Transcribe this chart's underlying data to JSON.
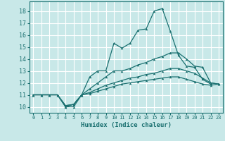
{
  "xlabel": "Humidex (Indice chaleur)",
  "bg_color": "#c8e8e8",
  "grid_color": "#ffffff",
  "line_color": "#1a7070",
  "xlim": [
    -0.5,
    23.5
  ],
  "ylim": [
    9.5,
    18.8
  ],
  "yticks": [
    10,
    11,
    12,
    13,
    14,
    15,
    16,
    17,
    18
  ],
  "xticks": [
    0,
    1,
    2,
    3,
    4,
    5,
    6,
    7,
    8,
    9,
    10,
    11,
    12,
    13,
    14,
    15,
    16,
    17,
    18,
    19,
    20,
    21,
    22,
    23
  ],
  "series": [
    {
      "x": [
        0,
        1,
        2,
        3,
        4,
        5,
        6,
        7,
        8,
        9,
        10,
        11,
        12,
        13,
        14,
        15,
        16,
        17,
        18,
        19,
        20,
        21,
        22
      ],
      "y": [
        11,
        11,
        11,
        11,
        10.0,
        10.0,
        11,
        12.5,
        13,
        13,
        15.3,
        14.9,
        15.3,
        16.4,
        16.5,
        18.0,
        18.2,
        16.3,
        14.3,
        13.4,
        13.3,
        12.3,
        11.9
      ]
    },
    {
      "x": [
        0,
        1,
        2,
        3,
        4,
        5,
        6,
        7,
        8,
        9,
        10,
        11,
        12,
        13,
        14,
        15,
        16,
        17,
        18,
        19,
        20,
        21,
        22,
        23
      ],
      "y": [
        11,
        11,
        11,
        11,
        10.0,
        10.2,
        11,
        11.5,
        12.0,
        12.5,
        13.0,
        13.0,
        13.2,
        13.5,
        13.7,
        14.0,
        14.2,
        14.5,
        14.5,
        14.0,
        13.4,
        13.3,
        12.0,
        11.9
      ]
    },
    {
      "x": [
        0,
        1,
        2,
        3,
        4,
        5,
        6,
        7,
        8,
        9,
        10,
        11,
        12,
        13,
        14,
        15,
        16,
        17,
        18,
        19,
        20,
        21,
        22,
        23
      ],
      "y": [
        11,
        11,
        11,
        11,
        10.1,
        10.2,
        11.0,
        11.2,
        11.5,
        11.8,
        12.0,
        12.2,
        12.4,
        12.5,
        12.7,
        12.8,
        13.0,
        13.2,
        13.2,
        13.0,
        12.8,
        12.4,
        12.0,
        11.9
      ]
    },
    {
      "x": [
        0,
        1,
        2,
        3,
        4,
        5,
        6,
        7,
        8,
        9,
        10,
        11,
        12,
        13,
        14,
        15,
        16,
        17,
        18,
        19,
        20,
        21,
        22,
        23
      ],
      "y": [
        11,
        11,
        11,
        11,
        10.1,
        10.2,
        11.0,
        11.1,
        11.3,
        11.5,
        11.7,
        11.9,
        12.0,
        12.1,
        12.2,
        12.3,
        12.4,
        12.5,
        12.5,
        12.3,
        12.1,
        11.9,
        11.8,
        11.9
      ]
    }
  ]
}
